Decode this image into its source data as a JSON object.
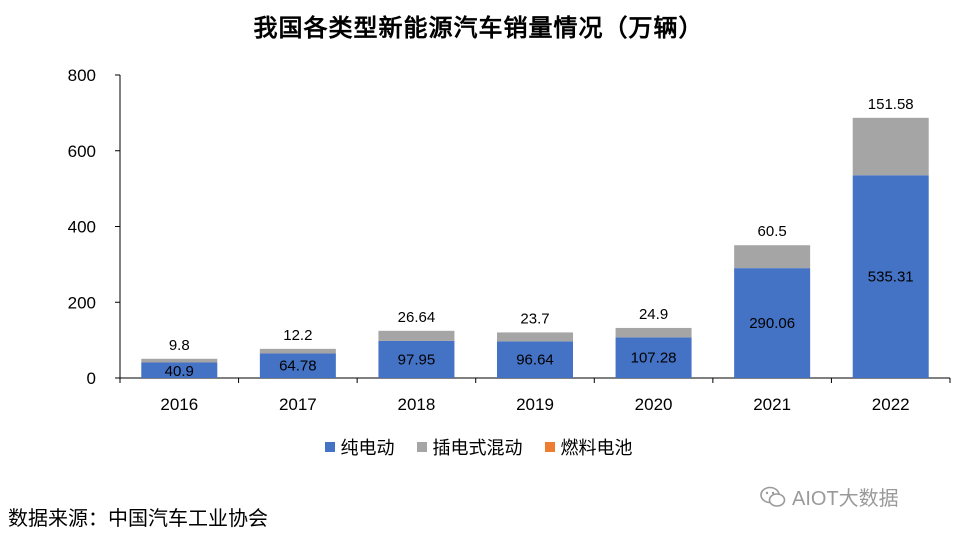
{
  "chart_data": {
    "type": "bar",
    "stacked": true,
    "title": "我国各类型新能源汽车销量情况（万辆）",
    "categories": [
      "2016",
      "2017",
      "2018",
      "2019",
      "2020",
      "2021",
      "2022"
    ],
    "series": [
      {
        "name": "纯电动",
        "color": "#4472C4",
        "values": [
          40.9,
          64.78,
          97.95,
          96.64,
          107.28,
          290.06,
          535.31
        ]
      },
      {
        "name": "插电式混动",
        "color": "#A5A5A5",
        "values": [
          9.8,
          12.2,
          26.64,
          23.7,
          24.9,
          60.5,
          151.58
        ]
      },
      {
        "name": "燃料电池",
        "color": "#ED7D31",
        "values": [
          0,
          0,
          0,
          0,
          0,
          0,
          0
        ]
      }
    ],
    "ylim": [
      0,
      800
    ],
    "yticks": [
      0,
      200,
      400,
      600,
      800
    ],
    "grid": false,
    "legend_position": "bottom"
  },
  "source": "数据来源：中国汽车工业协会",
  "watermark": "AIOT大数据"
}
